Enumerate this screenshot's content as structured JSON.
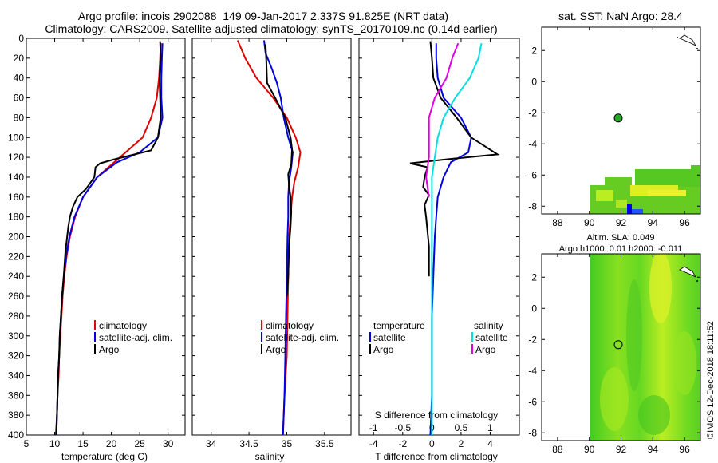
{
  "figure": {
    "title_line1": "Argo profile: incois 2902088_149 09-Jan-2017 2.337S 91.825E (NRT data)",
    "title_line2": "Climatology: CARS2009. Satellite-adjusted climatology: synTS_20170109.nc (0.14d earlier)",
    "credit": "©IMOS 12-Dec-2018 18:11:52"
  },
  "colors": {
    "climatology": "#e00000",
    "satellite": "#0000e0",
    "argo": "#000000",
    "sal_satellite": "#00e0e0",
    "sal_argo": "#e000e0",
    "marker": "#22aa22"
  },
  "chart_data": [
    {
      "id": "temperature",
      "type": "line",
      "xlabel": "temperature (deg C)",
      "ylabel": "",
      "xlim": [
        5,
        33
      ],
      "ylim": [
        400,
        0
      ],
      "xticks": [
        "5",
        "10",
        "15",
        "20",
        "25",
        "30"
      ],
      "xtick_values": [
        5,
        10,
        15,
        20,
        25,
        30
      ],
      "yticks": [
        "0",
        "20",
        "40",
        "60",
        "80",
        "100",
        "120",
        "140",
        "160",
        "180",
        "200",
        "220",
        "240",
        "260",
        "280",
        "300",
        "320",
        "340",
        "360",
        "380",
        "400"
      ],
      "ytick_values": [
        0,
        20,
        40,
        60,
        80,
        100,
        120,
        140,
        160,
        180,
        200,
        220,
        240,
        260,
        280,
        300,
        320,
        340,
        360,
        380,
        400
      ],
      "legend": [
        "climatology",
        "satellite-adj. clim.",
        "Argo"
      ],
      "series": [
        {
          "name": "climatology",
          "color": "#e00000",
          "points": [
            [
              28.7,
              5
            ],
            [
              28.6,
              20
            ],
            [
              28.4,
              40
            ],
            [
              28.0,
              60
            ],
            [
              27.0,
              80
            ],
            [
              25.5,
              100
            ],
            [
              21.5,
              120
            ],
            [
              17.5,
              140
            ],
            [
              15.0,
              160
            ],
            [
              13.6,
              180
            ],
            [
              12.7,
              200
            ],
            [
              12.1,
              220
            ],
            [
              11.7,
              240
            ],
            [
              11.4,
              260
            ],
            [
              11.2,
              280
            ],
            [
              11.0,
              300
            ],
            [
              10.8,
              320
            ],
            [
              10.7,
              340
            ],
            [
              10.5,
              360
            ],
            [
              10.4,
              380
            ],
            [
              10.3,
              400
            ]
          ]
        },
        {
          "name": "satellite-adj. clim.",
          "color": "#0000e0",
          "points": [
            [
              29.0,
              5
            ],
            [
              28.9,
              20
            ],
            [
              28.8,
              40
            ],
            [
              28.8,
              60
            ],
            [
              29.0,
              80
            ],
            [
              28.2,
              100
            ],
            [
              25.0,
              115
            ],
            [
              21.0,
              125
            ],
            [
              17.5,
              140
            ],
            [
              15.0,
              160
            ],
            [
              13.5,
              180
            ],
            [
              12.6,
              200
            ],
            [
              12.0,
              220
            ],
            [
              11.6,
              240
            ],
            [
              11.3,
              260
            ],
            [
              11.1,
              280
            ],
            [
              10.9,
              300
            ],
            [
              10.8,
              320
            ],
            [
              10.6,
              340
            ],
            [
              10.5,
              360
            ],
            [
              10.4,
              380
            ],
            [
              10.2,
              400
            ]
          ]
        },
        {
          "name": "Argo",
          "color": "#000000",
          "points": [
            [
              28.6,
              3
            ],
            [
              28.7,
              20
            ],
            [
              28.5,
              40
            ],
            [
              28.6,
              60
            ],
            [
              28.7,
              80
            ],
            [
              28.2,
              100
            ],
            [
              27.0,
              113
            ],
            [
              20.5,
              122
            ],
            [
              18.0,
              126
            ],
            [
              17.2,
              130
            ],
            [
              17.0,
              140
            ],
            [
              16.0,
              148
            ],
            [
              15.5,
              152
            ],
            [
              14.0,
              160
            ],
            [
              13.2,
              170
            ],
            [
              12.7,
              180
            ],
            [
              12.4,
              190
            ],
            [
              12.2,
              200
            ],
            [
              11.9,
              215
            ],
            [
              11.6,
              240
            ],
            [
              11.3,
              260
            ],
            [
              11.1,
              280
            ],
            [
              10.9,
              300
            ],
            [
              10.8,
              320
            ],
            [
              10.6,
              340
            ],
            [
              10.5,
              360
            ],
            [
              10.4,
              380
            ],
            [
              10.3,
              400
            ]
          ]
        }
      ]
    },
    {
      "id": "salinity",
      "type": "line",
      "xlabel": "salinity",
      "ylabel": "",
      "xlim": [
        33.75,
        35.85
      ],
      "ylim": [
        400,
        0
      ],
      "xticks": [
        "34",
        "34.5",
        "35",
        "35.5"
      ],
      "xtick_values": [
        34,
        34.5,
        35,
        35.5
      ],
      "legend": [
        "climatology",
        "satellite-adj. clim.",
        "Argo"
      ],
      "series": [
        {
          "name": "climatology",
          "color": "#e00000",
          "points": [
            [
              34.35,
              2
            ],
            [
              34.45,
              20
            ],
            [
              34.6,
              40
            ],
            [
              34.82,
              60
            ],
            [
              35.0,
              80
            ],
            [
              35.12,
              100
            ],
            [
              35.18,
              115
            ],
            [
              35.15,
              130
            ],
            [
              35.1,
              145
            ],
            [
              35.07,
              160
            ],
            [
              35.05,
              180
            ],
            [
              35.03,
              200
            ],
            [
              35.02,
              240
            ],
            [
              35.01,
              280
            ],
            [
              35.0,
              320
            ],
            [
              34.97,
              360
            ],
            [
              34.95,
              400
            ]
          ]
        },
        {
          "name": "satellite-adj. clim.",
          "color": "#0000e0",
          "points": [
            [
              34.7,
              2
            ],
            [
              34.72,
              15
            ],
            [
              34.8,
              30
            ],
            [
              34.87,
              45
            ],
            [
              34.92,
              60
            ],
            [
              34.96,
              80
            ],
            [
              35.02,
              100
            ],
            [
              35.08,
              115
            ],
            [
              35.06,
              130
            ],
            [
              35.03,
              145
            ],
            [
              35.02,
              160
            ],
            [
              35.02,
              180
            ],
            [
              35.01,
              200
            ],
            [
              35.0,
              240
            ],
            [
              34.99,
              280
            ],
            [
              34.98,
              320
            ],
            [
              34.97,
              360
            ],
            [
              34.95,
              400
            ]
          ]
        },
        {
          "name": "Argo",
          "color": "#000000",
          "points": [
            [
              34.72,
              6
            ],
            [
              34.73,
              25
            ],
            [
              34.74,
              45
            ],
            [
              34.86,
              62
            ],
            [
              34.98,
              80
            ],
            [
              35.05,
              100
            ],
            [
              35.07,
              112
            ],
            [
              35.06,
              127
            ],
            [
              35.02,
              137
            ],
            [
              35.03,
              148
            ],
            [
              35.05,
              160
            ],
            [
              35.06,
              175
            ],
            [
              35.05,
              190
            ],
            [
              35.03,
              210
            ],
            [
              35.02,
              240
            ],
            [
              35.0,
              260
            ]
          ]
        }
      ]
    },
    {
      "id": "differences",
      "type": "line",
      "xlabel": "T difference from climatology",
      "xlabel_top": "S difference from climatology",
      "xlim": [
        -5,
        6
      ],
      "ylim": [
        400,
        0
      ],
      "xticks": [
        "-4",
        "-2",
        "0",
        "2",
        "4"
      ],
      "xtick_values": [
        -4,
        -2,
        0,
        2,
        4
      ],
      "s_ticks": [
        "-1",
        "-0.5",
        "0",
        "0.5",
        "1"
      ],
      "s_tick_values": [
        -1,
        -0.5,
        0,
        0.5,
        1
      ],
      "s_xlim": [
        -1.25,
        1.5
      ],
      "legend_left_title": "temperature",
      "legend_left": [
        "satellite",
        "Argo"
      ],
      "legend_right_title": "salinity",
      "legend_right": [
        "satellite",
        "Argo"
      ],
      "series": [
        {
          "name": "T satellite",
          "axis": "T",
          "color": "#0000e0",
          "points": [
            [
              0.3,
              5
            ],
            [
              0.3,
              20
            ],
            [
              0.4,
              40
            ],
            [
              0.8,
              60
            ],
            [
              2.0,
              80
            ],
            [
              2.7,
              100
            ],
            [
              2.5,
              115
            ],
            [
              1.3,
              125
            ],
            [
              0.8,
              140
            ],
            [
              0.4,
              160
            ],
            [
              0.3,
              180
            ],
            [
              0.2,
              200
            ],
            [
              0.1,
              240
            ],
            [
              0.0,
              280
            ],
            [
              0.0,
              320
            ],
            [
              0.0,
              360
            ],
            [
              -0.1,
              400
            ]
          ]
        },
        {
          "name": "T Argo",
          "axis": "T",
          "color": "#000000",
          "points": [
            [
              -0.1,
              3
            ],
            [
              0.0,
              20
            ],
            [
              0.1,
              40
            ],
            [
              0.6,
              60
            ],
            [
              1.7,
              80
            ],
            [
              2.7,
              100
            ],
            [
              4.5,
              117
            ],
            [
              1.0,
              122
            ],
            [
              -1.5,
              126
            ],
            [
              -0.3,
              130
            ],
            [
              -0.5,
              140
            ],
            [
              -0.6,
              150
            ],
            [
              -0.2,
              158
            ],
            [
              -0.5,
              168
            ],
            [
              -0.4,
              180
            ],
            [
              -0.3,
              195
            ],
            [
              -0.2,
              210
            ],
            [
              -0.2,
              240
            ]
          ]
        },
        {
          "name": "S satellite",
          "axis": "S",
          "color": "#00e0e0",
          "points": [
            [
              0.85,
              5
            ],
            [
              0.8,
              20
            ],
            [
              0.65,
              40
            ],
            [
              0.4,
              60
            ],
            [
              0.2,
              80
            ],
            [
              0.1,
              100
            ],
            [
              0.05,
              120
            ],
            [
              0.0,
              140
            ],
            [
              0.0,
              160
            ],
            [
              0.0,
              200
            ],
            [
              0.0,
              240
            ],
            [
              0.0,
              280
            ],
            [
              0.0,
              320
            ],
            [
              0.0,
              360
            ],
            [
              0.0,
              400
            ]
          ]
        },
        {
          "name": "S Argo",
          "axis": "S",
          "color": "#e000e0",
          "points": [
            [
              0.45,
              5
            ],
            [
              0.35,
              20
            ],
            [
              0.25,
              40
            ],
            [
              0.05,
              60
            ],
            [
              -0.05,
              80
            ],
            [
              -0.05,
              100
            ],
            [
              -0.05,
              120
            ],
            [
              -0.1,
              140
            ],
            [
              -0.05,
              160
            ]
          ]
        }
      ]
    },
    {
      "id": "sst_map",
      "type": "heatmap",
      "title": "sat. SST: NaN Argo: 28.4",
      "xlim": [
        87,
        97
      ],
      "ylim": [
        -8.5,
        3.5
      ],
      "xticks": [
        "88",
        "90",
        "92",
        "94",
        "96"
      ],
      "xtick_values": [
        88,
        90,
        92,
        94,
        96
      ],
      "yticks": [
        "2",
        "0",
        "-2",
        "-4",
        "-6",
        "-8"
      ],
      "ytick_values": [
        2,
        0,
        -2,
        -4,
        -6,
        -8
      ],
      "argo_position": [
        91.825,
        -2.337
      ]
    },
    {
      "id": "sla_map",
      "type": "heatmap",
      "title": "Altim. SLA: 0.049",
      "subtitle": "Argo h1000: 0.01 h2000: -0.011",
      "xlim": [
        87,
        97
      ],
      "ylim": [
        -8.5,
        3.5
      ],
      "xticks": [
        "88",
        "90",
        "92",
        "94",
        "96"
      ],
      "xtick_values": [
        88,
        90,
        92,
        94,
        96
      ],
      "yticks": [
        "2",
        "0",
        "-2",
        "-4",
        "-6",
        "-8"
      ],
      "ytick_values": [
        2,
        0,
        -2,
        -4,
        -6,
        -8
      ],
      "argo_position": [
        91.825,
        -2.337
      ]
    }
  ]
}
